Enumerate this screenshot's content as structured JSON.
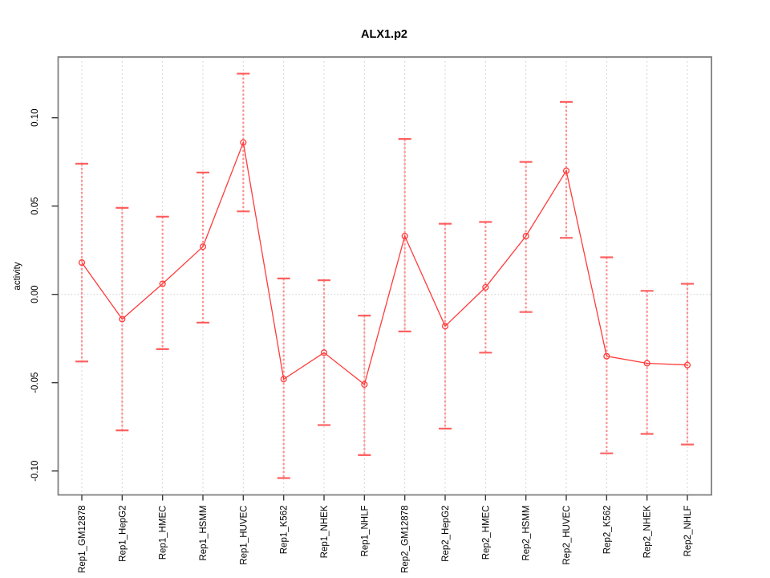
{
  "chart_data": {
    "type": "line",
    "title": "ALX1.p2",
    "ylabel": "activity",
    "xlabel": "",
    "marker": "open-circle",
    "legend": "none",
    "categories": [
      "Rep1_GM12878",
      "Rep1_HepG2",
      "Rep1_HMEC",
      "Rep1_HSMM",
      "Rep1_HUVEC",
      "Rep1_K562",
      "Rep1_NHEK",
      "Rep1_NHLF",
      "Rep2_GM12878",
      "Rep2_HepG2",
      "Rep2_HMEC",
      "Rep2_HSMM",
      "Rep2_HUVEC",
      "Rep2_K562",
      "Rep2_NHEK",
      "Rep2_NHLF"
    ],
    "series": [
      {
        "name": "activity",
        "values": [
          0.018,
          -0.014,
          0.006,
          0.027,
          0.086,
          -0.048,
          -0.033,
          -0.051,
          0.033,
          -0.018,
          0.004,
          0.033,
          0.07,
          -0.035,
          -0.039,
          -0.04
        ],
        "error_high": [
          0.074,
          0.049,
          0.044,
          0.069,
          0.125,
          0.009,
          0.008,
          -0.012,
          0.088,
          0.04,
          0.041,
          0.075,
          0.109,
          0.021,
          0.002,
          0.006
        ],
        "error_low": [
          -0.038,
          -0.077,
          -0.031,
          -0.016,
          0.047,
          -0.104,
          -0.074,
          -0.091,
          -0.021,
          -0.076,
          -0.033,
          -0.01,
          0.032,
          -0.09,
          -0.079,
          -0.085
        ]
      }
    ],
    "ylim": [
      -0.113,
      0.134
    ],
    "yticks": {
      "values": [
        0.1,
        0.05,
        0.0,
        -0.05,
        -0.1
      ],
      "labels": [
        "0.10",
        "0.05",
        "0.00",
        "-0.05",
        "-0.10"
      ]
    },
    "grid": {
      "vertical_per_category": true,
      "horizontal_zero_line": true
    },
    "colors": {
      "point_line": "#FF3B3B",
      "error_bar": "#FF9090",
      "error_cap": "#FF6060",
      "gridline": "#D4D4D4",
      "zero_line": "#CCCCCC",
      "box": "#808080",
      "tick": "#3A3A3A",
      "text": "#000000",
      "background": "#FFFFFF"
    }
  }
}
